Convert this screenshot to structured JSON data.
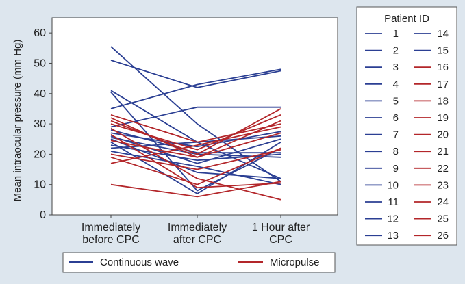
{
  "chart_data": {
    "type": "line",
    "title": "",
    "xlabel": "",
    "ylabel": "Mean intraocular pressure (mm Hg)",
    "categories": [
      "Immediately before CPC",
      "Immediately after CPC",
      "1 Hour after CPC"
    ],
    "category_lines": [
      [
        "Immediately",
        "before CPC"
      ],
      [
        "Immediately",
        "after CPC"
      ],
      [
        "1 Hour after",
        "CPC"
      ]
    ],
    "ylim": [
      0,
      65
    ],
    "yticks": [
      0,
      10,
      20,
      30,
      40,
      50,
      60
    ],
    "grid": false,
    "colors": {
      "continuous_wave": "#2b3f93",
      "micropulse": "#b3262a"
    },
    "series": [
      {
        "name": "1",
        "group": "continuous_wave",
        "values": [
          55.5,
          30,
          11
        ]
      },
      {
        "name": "2",
        "group": "continuous_wave",
        "values": [
          51,
          42,
          47.5
        ]
      },
      {
        "name": "3",
        "group": "continuous_wave",
        "values": [
          41,
          24,
          12
        ]
      },
      {
        "name": "4",
        "group": "continuous_wave",
        "values": [
          40.5,
          8,
          22
        ]
      },
      {
        "name": "5",
        "group": "continuous_wave",
        "values": [
          35,
          43,
          48
        ]
      },
      {
        "name": "6",
        "group": "continuous_wave",
        "values": [
          29,
          35.5,
          35.5
        ]
      },
      {
        "name": "7",
        "group": "continuous_wave",
        "values": [
          28,
          20.5,
          20.5
        ]
      },
      {
        "name": "8",
        "group": "continuous_wave",
        "values": [
          27,
          22.5,
          27.5
        ]
      },
      {
        "name": "9",
        "group": "continuous_wave",
        "values": [
          26,
          17,
          25
        ]
      },
      {
        "name": "10",
        "group": "continuous_wave",
        "values": [
          25.5,
          20,
          19
        ]
      },
      {
        "name": "11",
        "group": "continuous_wave",
        "values": [
          25,
          14,
          12
        ]
      },
      {
        "name": "12",
        "group": "continuous_wave",
        "values": [
          24,
          7,
          24
        ]
      },
      {
        "name": "13",
        "group": "continuous_wave",
        "values": [
          23,
          18,
          20
        ]
      },
      {
        "name": "14",
        "group": "continuous_wave",
        "values": [
          22,
          24,
          26
        ]
      },
      {
        "name": "15",
        "group": "continuous_wave",
        "values": [
          21,
          16,
          10
        ]
      },
      {
        "name": "16",
        "group": "micropulse",
        "values": [
          33,
          24,
          30
        ]
      },
      {
        "name": "17",
        "group": "micropulse",
        "values": [
          32,
          19,
          31
        ]
      },
      {
        "name": "18",
        "group": "micropulse",
        "values": [
          31,
          20,
          35
        ]
      },
      {
        "name": "19",
        "group": "micropulse",
        "values": [
          30,
          21.5,
          33
        ]
      },
      {
        "name": "20",
        "group": "micropulse",
        "values": [
          28.5,
          12,
          5
        ]
      },
      {
        "name": "21",
        "group": "micropulse",
        "values": [
          26.5,
          9,
          10.5
        ]
      },
      {
        "name": "22",
        "group": "micropulse",
        "values": [
          24.5,
          19,
          27
        ]
      },
      {
        "name": "23",
        "group": "micropulse",
        "values": [
          20,
          15,
          21.5
        ]
      },
      {
        "name": "24",
        "group": "micropulse",
        "values": [
          19,
          10,
          22
        ]
      },
      {
        "name": "25",
        "group": "micropulse",
        "values": [
          17,
          23,
          29
        ]
      },
      {
        "name": "26",
        "group": "micropulse",
        "values": [
          10,
          6,
          11
        ]
      }
    ],
    "legend_title": "Patient ID",
    "legend_left_ids": [
      "1",
      "2",
      "3",
      "4",
      "5",
      "6",
      "7",
      "8",
      "9",
      "10",
      "11",
      "12",
      "13"
    ],
    "legend_right_ids": [
      "14",
      "15",
      "16",
      "17",
      "18",
      "19",
      "20",
      "21",
      "22",
      "23",
      "24",
      "25",
      "26"
    ],
    "group_legend": [
      {
        "label": "Continuous wave",
        "group": "continuous_wave"
      },
      {
        "label": "Micropulse",
        "group": "micropulse"
      }
    ]
  }
}
